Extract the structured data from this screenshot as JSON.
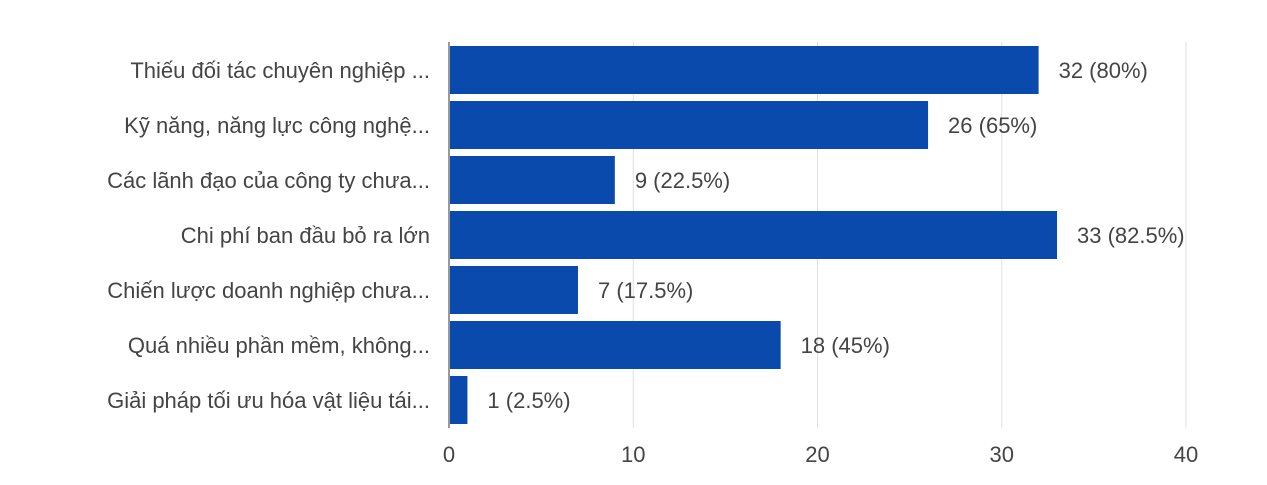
{
  "chart_data": {
    "type": "bar",
    "orientation": "horizontal",
    "categories": [
      "Thiếu đối tác chuyên nghiệp ...",
      "Kỹ năng, năng lực công nghệ...",
      "Các lãnh đạo của công ty chưa...",
      "Chi phí ban đầu bỏ ra lớn",
      "Chiến lược doanh nghiệp chưa...",
      "Quá nhiều phần mềm, không...",
      "Giải pháp tối ưu hóa vật liệu tái..."
    ],
    "values": [
      32,
      26,
      9,
      33,
      7,
      18,
      1
    ],
    "data_labels": [
      "32 (80%)",
      "26 (65%)",
      "9 (22.5%)",
      "33 (82.5%)",
      "7 (17.5%)",
      "18 (45%)",
      "1 (2.5%)"
    ],
    "xlim": [
      0,
      40
    ],
    "xticks": [
      "0",
      "10",
      "20",
      "30",
      "40"
    ],
    "grid": true,
    "bar_color": "#0b4aad",
    "grid_color": "#e0e0e0"
  }
}
